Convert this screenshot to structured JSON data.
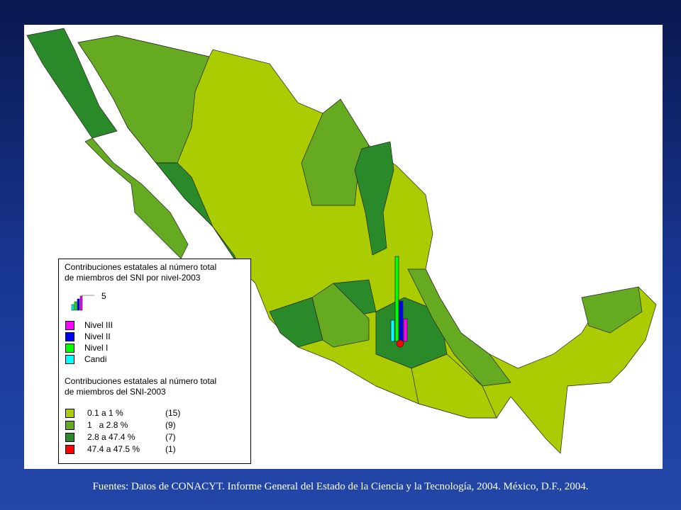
{
  "legend": {
    "levels_title": [
      "Contribuciones estatales al número total",
      "de miembros del SNI por nivel-2003"
    ],
    "scale_label": "5",
    "levels": [
      {
        "label": "Nivel III",
        "color": "#ff00ff"
      },
      {
        "label": "Nivel II",
        "color": "#0000ff"
      },
      {
        "label": "Nivel I",
        "color": "#00ff00"
      },
      {
        "label": "Candi",
        "color": "#00ffff"
      }
    ],
    "totals_title": [
      "Contribuciones estatales al número total",
      "de miembros del SNI-2003"
    ],
    "classes": [
      {
        "range": "0.1 a 1 %",
        "count": "(15)",
        "color": "#aacc00"
      },
      {
        "range": "1   a 2.8 %",
        "count": "(9)",
        "color": "#66aa22"
      },
      {
        "range": "2.8 a 47.4 %",
        "count": "(7)",
        "color": "#2a8a2a"
      },
      {
        "range": "47.4 a 47.5 %",
        "count": "(1)",
        "color": "#ff0000"
      }
    ]
  },
  "footer": "Fuentes: Datos de CONACYT. Informe General del Estado de la Ciencia y la Tecnología, 2004. México, D.F., 2004."
}
